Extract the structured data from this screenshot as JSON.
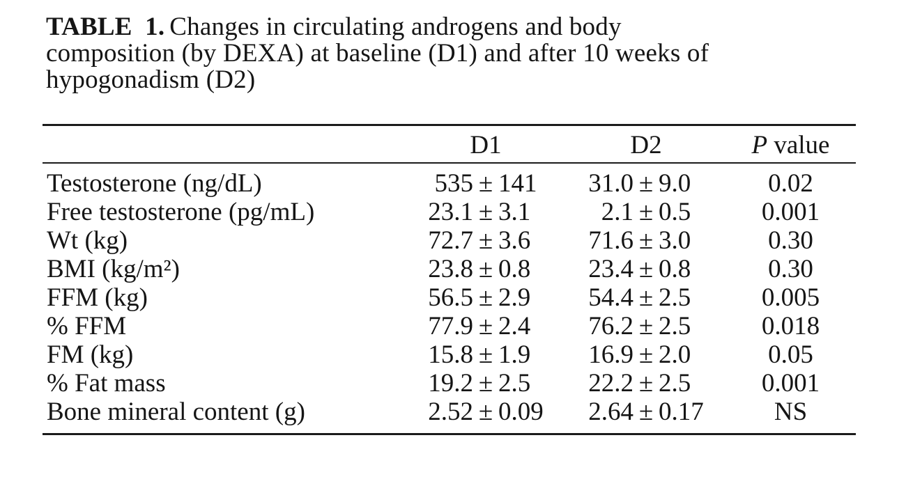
{
  "caption": {
    "label": "TABLE 1.",
    "line1_rest": "Changes in circulating androgens and body",
    "line2": "composition (by DEXA) at baseline (D1) and after 10 weeks of",
    "line3": "hypogonadism (D2)"
  },
  "table": {
    "pm": "±",
    "header": {
      "d1": "D1",
      "d2": "D2",
      "p_italic": "P",
      "p_rest": " value"
    },
    "rows": [
      {
        "label": "Testosterone (ng/dL)",
        "d1v": "535",
        "d1e": "141",
        "d2v": "31.0",
        "d2e": "9.0",
        "p": "0.02"
      },
      {
        "label": "Free testosterone (pg/mL)",
        "d1v": "23.1",
        "d1e": "3.1",
        "d2v": "2.1",
        "d2e": "0.5",
        "p": "0.001"
      },
      {
        "label": "Wt (kg)",
        "d1v": "72.7",
        "d1e": "3.6",
        "d2v": "71.6",
        "d2e": "3.0",
        "p": "0.30"
      },
      {
        "label": "BMI (kg/m²)",
        "d1v": "23.8",
        "d1e": "0.8",
        "d2v": "23.4",
        "d2e": "0.8",
        "p": "0.30"
      },
      {
        "label": "FFM (kg)",
        "d1v": "56.5",
        "d1e": "2.9",
        "d2v": "54.4",
        "d2e": "2.5",
        "p": "0.005"
      },
      {
        "label": "% FFM",
        "d1v": "77.9",
        "d1e": "2.4",
        "d2v": "76.2",
        "d2e": "2.5",
        "p": "0.018"
      },
      {
        "label": "FM (kg)",
        "d1v": "15.8",
        "d1e": "1.9",
        "d2v": "16.9",
        "d2e": "2.0",
        "p": "0.05"
      },
      {
        "label": "% Fat mass",
        "d1v": "19.2",
        "d1e": "2.5",
        "d2v": "22.2",
        "d2e": "2.5",
        "p": "0.001"
      },
      {
        "label": "Bone mineral content (g)",
        "d1v": "2.52",
        "d1e": "0.09",
        "d2v": "2.64",
        "d2e": "0.17",
        "p": "NS"
      }
    ]
  },
  "colors": {
    "text": "#151515",
    "rule": "#1b1b1b",
    "background": "#ffffff"
  }
}
